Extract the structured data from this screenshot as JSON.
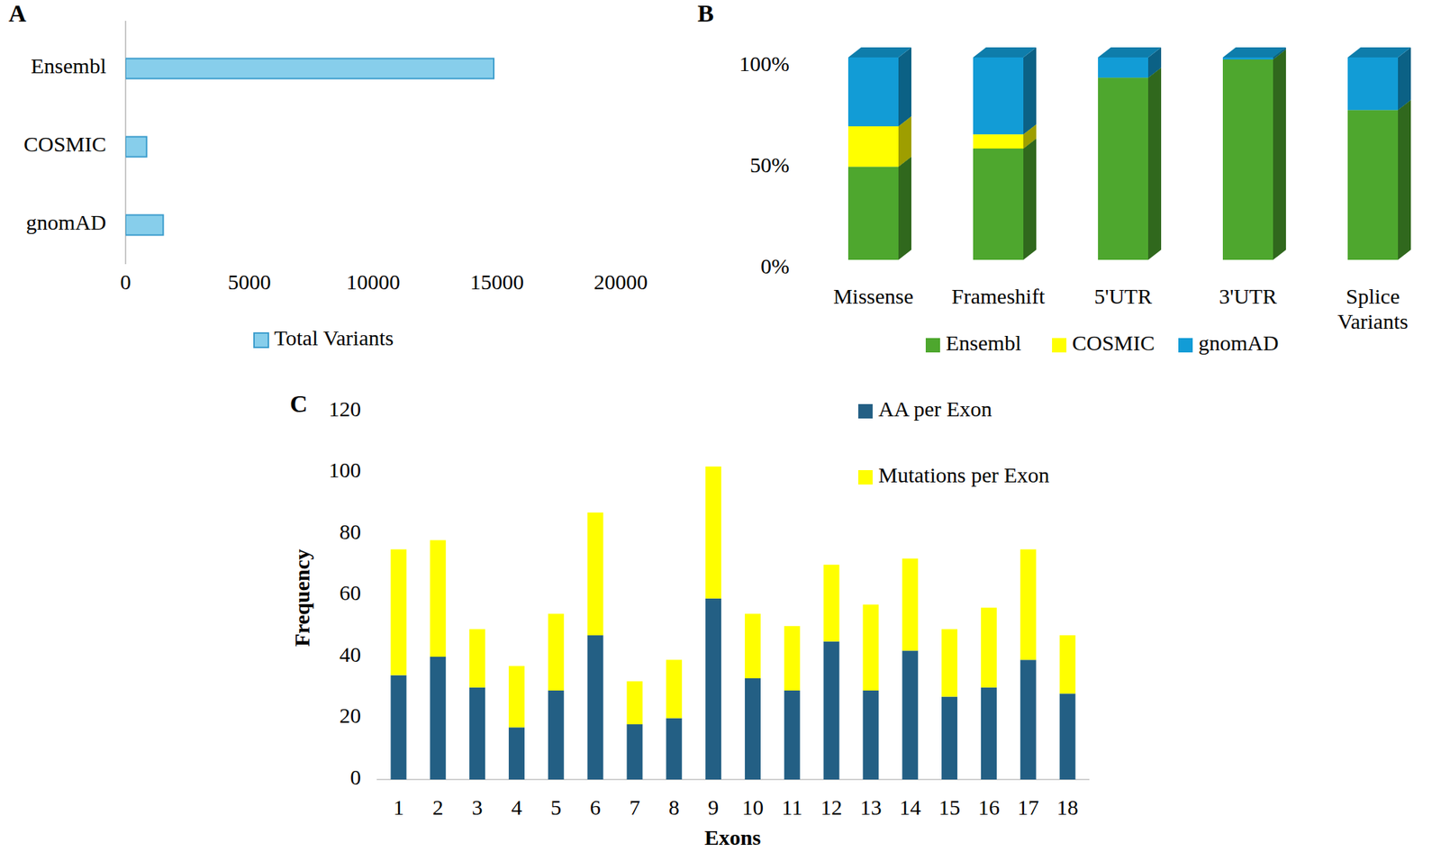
{
  "chart_data": [
    {
      "type": "bar",
      "title": "A",
      "orientation": "horizontal",
      "categories": [
        "Ensembl",
        "COSMIC",
        "gnomAD"
      ],
      "series": [
        {
          "name": "Total Variants",
          "color": "#87ceeb",
          "values": [
            14870,
            850,
            1520
          ]
        }
      ],
      "xlim": [
        0,
        20000
      ],
      "xticks": [
        0,
        5000,
        10000,
        15000,
        20000
      ],
      "legend": "bottom",
      "grid": false
    },
    {
      "type": "bar",
      "title": "B",
      "stacked": true,
      "categories": [
        "Missense",
        "Frameshift",
        "5'UTR",
        "3'UTR",
        "Splice Variants"
      ],
      "series": [
        {
          "name": "Ensembl",
          "color": "#4ea72e",
          "values": [
            46,
            55,
            90,
            99,
            74
          ]
        },
        {
          "name": "COSMIC",
          "color": "#ffff00",
          "values": [
            20,
            7,
            0,
            0,
            0
          ]
        },
        {
          "name": "gnomAD",
          "color": "#129cd6",
          "values": [
            34,
            38,
            10,
            1,
            26
          ]
        }
      ],
      "ylim": [
        0,
        100
      ],
      "yticks": [
        {
          "value": 0,
          "label": "0%"
        },
        {
          "value": 50,
          "label": "50%"
        },
        {
          "value": 100,
          "label": "100%"
        }
      ],
      "legend": "bottom",
      "grid": false
    },
    {
      "type": "bar",
      "title": "C",
      "stacked": true,
      "categories": [
        "1",
        "2",
        "3",
        "4",
        "5",
        "6",
        "7",
        "8",
        "9",
        "10",
        "11",
        "12",
        "13",
        "14",
        "15",
        "16",
        "17",
        "18"
      ],
      "series": [
        {
          "name": "AA per Exon",
          "color": "#235f84",
          "values": [
            34,
            40,
            30,
            17,
            29,
            47,
            18,
            20,
            59,
            33,
            29,
            45,
            29,
            42,
            27,
            30,
            39,
            28
          ]
        },
        {
          "name": "Mutations per Exon",
          "color": "#ffff00",
          "values": [
            41,
            38,
            19,
            20,
            25,
            40,
            14,
            19,
            43,
            21,
            21,
            25,
            28,
            30,
            22,
            26,
            36,
            19
          ]
        }
      ],
      "ylim": [
        0,
        120
      ],
      "yticks": [
        0,
        20,
        40,
        60,
        80,
        100,
        120
      ],
      "xlabel": "Exons",
      "ylabel": "Frequency",
      "legend": "top-right",
      "grid": false
    }
  ]
}
